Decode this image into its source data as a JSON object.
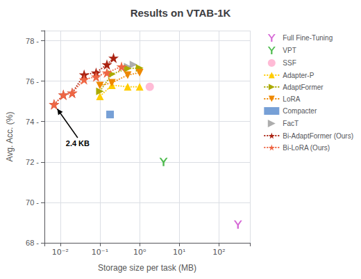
{
  "chart_data": {
    "type": "line",
    "title": "Results on VTAB-1K",
    "xlabel": "Storage size per task (MB)",
    "ylabel": "Avg. Acc. (%)",
    "log": "x",
    "grid": true,
    "legend": "right",
    "xlim": [
      0.004,
      600
    ],
    "xticks": [
      {
        "value": 0.01,
        "label": "10⁻²"
      },
      {
        "value": 0.1,
        "label": "10⁻¹"
      },
      {
        "value": 1,
        "label": "10⁰"
      },
      {
        "value": 10,
        "label": "10¹"
      },
      {
        "value": 100,
        "label": "10²"
      }
    ],
    "ylim": [
      68.0,
      78.5
    ],
    "yticks": [
      {
        "value": 68,
        "label": "68 -"
      },
      {
        "value": 70,
        "label": "70 -"
      },
      {
        "value": 72,
        "label": "72 -"
      },
      {
        "value": 74,
        "label": "74 -"
      },
      {
        "value": 76,
        "label": "76 -"
      },
      {
        "value": 78,
        "label": "78 -"
      }
    ],
    "series": [
      {
        "name": "Full Fine-Tuning",
        "type": "scatter",
        "marker": "upsilon",
        "color": "#cc44cc",
        "x": [
          300
        ],
        "values": [
          68.9
        ]
      },
      {
        "name": "VPT",
        "type": "scatter",
        "marker": "upsilon",
        "color": "#22aa22",
        "x": [
          4.0
        ],
        "values": [
          72.0
        ]
      },
      {
        "name": "SSF",
        "type": "scatter",
        "marker": "circle",
        "color": "#ffaacc",
        "x": [
          1.8
        ],
        "values": [
          75.72
        ]
      },
      {
        "name": "Adapter-P",
        "type": "line",
        "line_style": "dotted",
        "marker": "triangle-up",
        "color": "#ffcc00",
        "x": [
          0.1,
          0.2,
          0.5,
          1.0
        ],
        "values": [
          75.25,
          75.8,
          75.72,
          75.72
        ]
      },
      {
        "name": "AdaptFormer",
        "type": "line",
        "line_style": "dotted",
        "marker": "triangle-right",
        "color": "#aaaa00",
        "x": [
          0.1,
          0.2,
          0.5,
          1.0
        ],
        "values": [
          75.5,
          76.35,
          76.62,
          76.65
        ]
      },
      {
        "name": "LoRA",
        "type": "line",
        "line_style": "dotted",
        "marker": "triangle-down",
        "color": "#ee8800",
        "x": [
          0.1,
          0.2,
          0.5,
          1.0
        ],
        "values": [
          75.78,
          75.92,
          76.3,
          76.42
        ]
      },
      {
        "name": "Compacter",
        "type": "scatter",
        "marker": "square",
        "color": "#5588cc",
        "x": [
          0.18
        ],
        "values": [
          74.35
        ]
      },
      {
        "name": "FacT",
        "type": "scatter",
        "marker": "triangle-right",
        "color": "#999999",
        "x": [
          0.5,
          0.7
        ],
        "values": [
          76.72,
          76.82
        ]
      },
      {
        "name": "Bi-AdaptFormer (Ours)",
        "type": "line",
        "line_style": "dotted",
        "marker": "star",
        "color": "#aa2211",
        "x": [
          0.007,
          0.012,
          0.02,
          0.04,
          0.08,
          0.15,
          0.22
        ],
        "values": [
          74.85,
          75.32,
          75.42,
          76.32,
          76.42,
          76.82,
          77.15
        ]
      },
      {
        "name": "Bi-LoRA (Ours)",
        "type": "line",
        "line_style": "dotted",
        "marker": "star",
        "color": "#ee6644",
        "x": [
          0.007,
          0.012,
          0.02,
          0.04,
          0.08,
          0.15,
          0.35
        ],
        "values": [
          74.85,
          75.32,
          75.42,
          76.08,
          76.22,
          76.42,
          76.72
        ]
      }
    ],
    "annotations": [
      {
        "text": "2.4 KB",
        "x": 0.007,
        "y": 74.85
      }
    ]
  }
}
